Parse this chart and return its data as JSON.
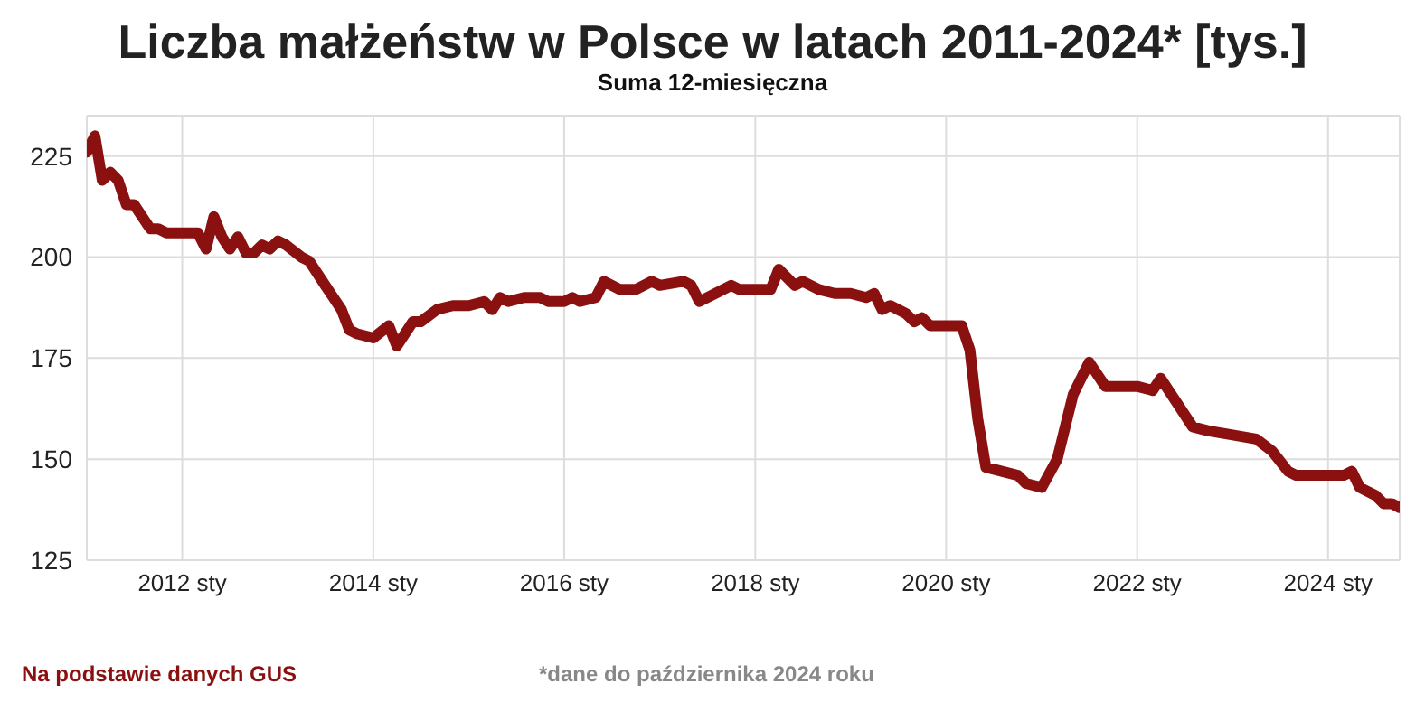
{
  "chart_data": {
    "type": "line",
    "title": "Liczba małżeństw w Polsce w latach 2011-2024* [tys.]",
    "subtitle": "Suma 12-miesięczna",
    "x": [
      "2011-01",
      "2011-02",
      "2011-03",
      "2011-04",
      "2011-05",
      "2011-06",
      "2011-07",
      "2011-08",
      "2011-09",
      "2011-10",
      "2011-11",
      "2012-01",
      "2012-03",
      "2012-04",
      "2012-05",
      "2012-06",
      "2012-07",
      "2012-08",
      "2012-09",
      "2012-10",
      "2012-11",
      "2012-12",
      "2013-01",
      "2013-02",
      "2013-04",
      "2013-05",
      "2013-07",
      "2013-08",
      "2013-09",
      "2013-10",
      "2013-11",
      "2014-01",
      "2014-03",
      "2014-04",
      "2014-06",
      "2014-07",
      "2014-09",
      "2014-11",
      "2015-01",
      "2015-03",
      "2015-04",
      "2015-05",
      "2015-06",
      "2015-08",
      "2015-10",
      "2015-11",
      "2016-01",
      "2016-02",
      "2016-03",
      "2016-05",
      "2016-06",
      "2016-08",
      "2016-10",
      "2016-12",
      "2017-01",
      "2017-04",
      "2017-05",
      "2017-06",
      "2017-08",
      "2017-10",
      "2017-11",
      "2018-01",
      "2018-03",
      "2018-04",
      "2018-06",
      "2018-07",
      "2018-09",
      "2018-11",
      "2019-01",
      "2019-03",
      "2019-04",
      "2019-05",
      "2019-06",
      "2019-08",
      "2019-09",
      "2019-10",
      "2019-11",
      "2020-01",
      "2020-03",
      "2020-04",
      "2020-05",
      "2020-06",
      "2020-08",
      "2020-10",
      "2020-11",
      "2021-01",
      "2021-03",
      "2021-05",
      "2021-07",
      "2021-09",
      "2022-01",
      "2022-03",
      "2022-04",
      "2022-06",
      "2022-08",
      "2022-10",
      "2023-01",
      "2023-04",
      "2023-06",
      "2023-08",
      "2023-09",
      "2023-11",
      "2024-01",
      "2024-03",
      "2024-04",
      "2024-05",
      "2024-07",
      "2024-08",
      "2024-09",
      "2024-10"
    ],
    "series": [
      {
        "color": "#8b1010",
        "values": [
          226,
          230,
          219,
          221,
          219,
          213,
          213,
          210,
          207,
          207,
          206,
          206,
          206,
          202,
          210,
          205,
          202,
          205,
          201,
          201,
          203,
          202,
          204,
          203,
          200,
          199,
          193,
          190,
          187,
          182,
          181,
          180,
          183,
          178,
          184,
          184,
          187,
          188,
          188,
          189,
          187,
          190,
          189,
          190,
          190,
          189,
          189,
          190,
          189,
          190,
          194,
          192,
          192,
          194,
          193,
          194,
          193,
          189,
          191,
          193,
          192,
          192,
          192,
          197,
          193,
          194,
          192,
          191,
          191,
          190,
          191,
          187,
          188,
          186,
          184,
          185,
          183,
          183,
          183,
          177,
          160,
          148,
          147,
          146,
          144,
          143,
          150,
          166,
          174,
          168,
          168,
          167,
          170,
          164,
          158,
          157,
          156,
          155,
          152,
          147,
          146,
          146,
          146,
          146,
          147,
          143,
          141,
          139,
          139,
          138
        ]
      }
    ],
    "xlim": [
      "2011-01",
      "2024-10"
    ],
    "xticks": [
      {
        "value": "2012-01",
        "label": "2012 sty"
      },
      {
        "value": "2014-01",
        "label": "2014 sty"
      },
      {
        "value": "2016-01",
        "label": "2016 sty"
      },
      {
        "value": "2018-01",
        "label": "2018 sty"
      },
      {
        "value": "2020-01",
        "label": "2020 sty"
      },
      {
        "value": "2022-01",
        "label": "2022 sty"
      },
      {
        "value": "2024-01",
        "label": "2024 sty"
      }
    ],
    "ylim": [
      125,
      235
    ],
    "yticks": [
      125,
      150,
      175,
      200,
      225
    ],
    "grid": true,
    "legend": false,
    "marker": "none",
    "line_style": "solid",
    "annotations": [
      "Na podstawie danych GUS",
      "*dane do października 2024 roku"
    ]
  }
}
